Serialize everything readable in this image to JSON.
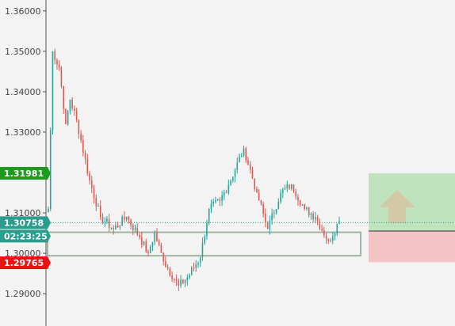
{
  "colors": {
    "background": "#f3f3f3",
    "axis": "#555555",
    "bull": "#26a69a",
    "bear": "#e05a52",
    "current_tag": "#2a9d8f",
    "take_profit": "#1e9a1e",
    "stop_loss": "#ee1111",
    "tp_zone": "#bfe3bd",
    "sl_zone": "#f4c3c3",
    "arrow": "#d4c6a4",
    "box_border": "#9fb59f"
  },
  "chart_data": {
    "type": "candlestick",
    "y_axis": {
      "range": [
        1.282,
        1.3627
      ],
      "ticks": [
        "1.36000",
        "1.35000",
        "1.34000",
        "1.33000",
        "1.31000",
        "1.30000",
        "1.29000"
      ]
    },
    "markers": {
      "take_profit": "1.31981",
      "current_price": "1.30758",
      "countdown": "02:23:25",
      "stop_loss": "1.29765"
    },
    "levels": {
      "take_profit": 1.31981,
      "current_price": 1.30758,
      "stop_loss": 1.29765,
      "entry": 1.3055,
      "box_top": 1.3052,
      "box_bottom": 1.2994,
      "sl_zone_bottom": 1.2978
    },
    "trade_icon": "up-arrow-icon",
    "path": [
      1.311,
      1.35,
      1.346,
      1.332,
      1.338,
      1.333,
      1.318,
      1.309,
      1.306,
      1.309,
      1.304,
      1.3,
      1.305,
      1.298,
      1.292,
      1.294,
      1.299,
      1.311,
      1.313,
      1.317,
      1.326,
      1.315,
      1.306,
      1.315,
      1.317,
      1.311,
      1.309,
      1.303,
      1.308
    ]
  }
}
